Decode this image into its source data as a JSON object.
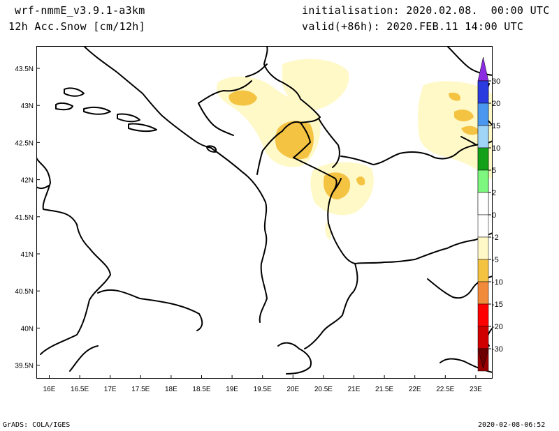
{
  "header": {
    "model": "wrf-nmmE_v3.9.1-a3km",
    "field": "12h Acc.Snow [cm/12h]",
    "initialisation": "initialisation: 2020.02.08.  00:00 UTC",
    "valid": "valid(+86h): 2020.FEB.11 14:00 UTC"
  },
  "footer": {
    "left": "GrADS: COLA/IGES",
    "right": "2020-02-08-06:52"
  },
  "map": {
    "lon_ticks": [
      "16E",
      "16.5E",
      "17E",
      "17.5E",
      "18E",
      "18.5E",
      "19E",
      "19.5E",
      "20E",
      "20.5E",
      "21E",
      "21.5E",
      "22E",
      "22.5E",
      "23E"
    ],
    "lat_ticks": [
      "43.5N",
      "43N",
      "42.5N",
      "42N",
      "41.5N",
      "41N",
      "40.5N",
      "40N",
      "39.5N"
    ],
    "colors": {
      "light_snow": "#fff9c8",
      "medium_snow": "#f5c342",
      "border": "#000000"
    }
  },
  "legend": {
    "labels": [
      "30",
      "20",
      "15",
      "10",
      "5",
      "2",
      "0",
      "2",
      "5",
      "10",
      "15",
      "20",
      "30"
    ],
    "colors_top": [
      "#8b2be2",
      "#2a3be0",
      "#4a97ef",
      "#9fd4f7",
      "#13a019",
      "#7ef77e",
      "#ffffff"
    ],
    "colors_bottom": [
      "#ffffff",
      "#fff9c8",
      "#f5c342",
      "#f28a3c",
      "#ff0000",
      "#d00000",
      "#9b0000",
      "#6f0000"
    ]
  }
}
